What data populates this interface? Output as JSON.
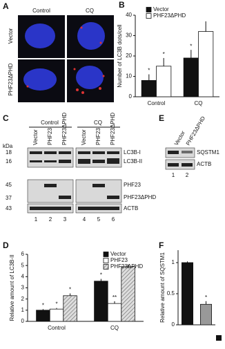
{
  "panels": {
    "A": {
      "letter": "A",
      "columns": [
        "Control",
        "CQ"
      ],
      "rows": [
        "Vector",
        "PHF23ΔPHD"
      ]
    },
    "C": {
      "letter": "C",
      "groups": [
        "Control",
        "CQ"
      ],
      "lanes": [
        "Vector",
        "PHF23",
        "PHF23ΔPHD",
        "Vector",
        "PHF23",
        "PHF23ΔPHD"
      ],
      "mw_unit": "kDa",
      "mw": [
        "18",
        "16",
        "45",
        "37",
        "43"
      ],
      "bands": [
        "LC3B-I",
        "LC3B-II",
        "PHF23",
        "PHF23ΔPHD",
        "ACTB"
      ],
      "lane_numbers": [
        "1",
        "2",
        "3",
        "4",
        "5",
        "6"
      ]
    },
    "E": {
      "letter": "E",
      "lanes": [
        "Vector",
        "PHF23ΔPHD"
      ],
      "bands": [
        "SQSTM1",
        "ACTB"
      ],
      "lane_numbers": [
        "1",
        "2"
      ]
    }
  },
  "chart_data": [
    {
      "type": "bar",
      "panel": "B",
      "ylabel": "Number of LC3B dots/cell",
      "categories": [
        "Control",
        "CQ"
      ],
      "ylim": [
        0,
        40
      ],
      "yticks": [
        0,
        10,
        20,
        30,
        40
      ],
      "series": [
        {
          "name": "Vector",
          "color": "#111111",
          "values": [
            8,
            19
          ],
          "errors": [
            3,
            4
          ],
          "significance": [
            "*",
            "*"
          ]
        },
        {
          "name": "PHF23ΔPHD",
          "color": "#ffffff",
          "values": [
            15,
            32
          ],
          "errors": [
            4,
            5
          ],
          "significance": [
            "*",
            null
          ]
        }
      ]
    },
    {
      "type": "bar",
      "panel": "D",
      "ylabel": "Relative amount of LC3B-II",
      "categories": [
        "Control",
        "CQ"
      ],
      "ylim": [
        0,
        6
      ],
      "yticks": [
        0,
        1,
        2,
        3,
        4,
        5,
        6
      ],
      "series": [
        {
          "name": "Vector",
          "color": "#111111",
          "values": [
            1,
            3.6
          ],
          "errors": [
            0.1,
            0.2
          ],
          "significance": [
            "*",
            "*"
          ]
        },
        {
          "name": "PHF23",
          "color": "#ffffff",
          "values": [
            1.1,
            1.6
          ],
          "errors": [
            0.1,
            0.2
          ],
          "significance": [
            "*",
            "**"
          ]
        },
        {
          "name": "PHF23ΔPHD",
          "color": "#cccccc",
          "pattern": "hatch",
          "values": [
            2.3,
            4.9
          ],
          "errors": [
            0.2,
            0.2
          ],
          "significance": [
            "*",
            null
          ]
        }
      ]
    },
    {
      "type": "bar",
      "panel": "F",
      "ylabel": "Relative amount of SQSTM1",
      "values": [
        1,
        0.33
      ],
      "errors": [
        0.02,
        0.05
      ],
      "colors": [
        "#111111",
        "#999999"
      ],
      "significance": [
        null,
        "*"
      ],
      "ylim": [
        0,
        1.2
      ],
      "yticks": [
        0,
        0.5,
        1
      ]
    }
  ]
}
